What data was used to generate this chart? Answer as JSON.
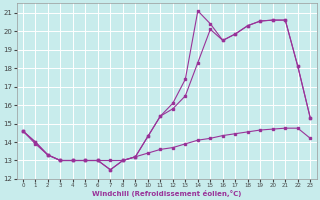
{
  "xlabel": "Windchill (Refroidissement éolien,°C)",
  "bg_color": "#c8ecec",
  "grid_color": "#aadddd",
  "line_color": "#993399",
  "xlim": [
    -0.5,
    23.5
  ],
  "ylim": [
    12,
    21.5
  ],
  "xticks": [
    0,
    1,
    2,
    3,
    4,
    5,
    6,
    7,
    8,
    9,
    10,
    11,
    12,
    13,
    14,
    15,
    16,
    17,
    18,
    19,
    20,
    21,
    22,
    23
  ],
  "yticks": [
    12,
    13,
    14,
    15,
    16,
    17,
    18,
    19,
    20,
    21
  ],
  "line1_x": [
    0,
    1,
    2,
    3,
    4,
    5,
    6,
    7,
    8,
    9,
    10,
    11,
    12,
    13,
    14,
    15,
    16,
    17,
    18,
    19,
    20,
    21,
    22,
    23
  ],
  "line1_y": [
    14.6,
    13.9,
    13.3,
    13.0,
    13.0,
    13.0,
    13.0,
    12.5,
    13.0,
    13.2,
    13.4,
    13.6,
    13.7,
    13.9,
    14.1,
    14.2,
    14.35,
    14.45,
    14.55,
    14.65,
    14.7,
    14.75,
    14.75,
    14.2
  ],
  "line2_x": [
    0,
    1,
    2,
    3,
    4,
    5,
    6,
    7,
    8,
    9,
    10,
    11,
    12,
    13,
    14,
    15,
    16,
    17,
    18,
    19,
    20,
    21,
    22,
    23
  ],
  "line2_y": [
    14.6,
    14.0,
    13.3,
    13.0,
    13.0,
    13.0,
    13.0,
    13.0,
    13.0,
    13.2,
    14.3,
    15.4,
    15.8,
    16.5,
    18.3,
    20.1,
    19.5,
    19.85,
    20.3,
    20.55,
    20.6,
    20.6,
    18.1,
    15.3
  ],
  "line3_x": [
    0,
    1,
    2,
    3,
    4,
    5,
    6,
    7,
    8,
    9,
    10,
    11,
    12,
    13,
    14,
    15,
    16,
    17,
    18,
    19,
    20,
    21,
    22,
    23
  ],
  "line3_y": [
    14.6,
    14.0,
    13.3,
    13.0,
    13.0,
    13.0,
    13.0,
    12.5,
    13.0,
    13.2,
    14.3,
    15.4,
    16.1,
    17.4,
    21.1,
    20.4,
    19.5,
    19.85,
    20.3,
    20.55,
    20.6,
    20.6,
    18.1,
    15.3
  ]
}
